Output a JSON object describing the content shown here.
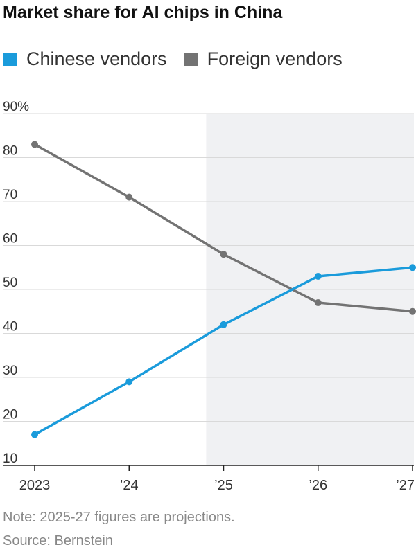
{
  "title": "Market share for AI chips in China",
  "notes": {
    "projection": "Note: 2025-27 figures are projections.",
    "source": "Source: Bernstein"
  },
  "chart_data": {
    "type": "line",
    "categories": [
      "2023",
      "’24",
      "’25",
      "’26",
      "’27"
    ],
    "series": [
      {
        "name": "Chinese vendors",
        "color": "#1a9bdb",
        "values": [
          17,
          29,
          42,
          53,
          55
        ]
      },
      {
        "name": "Foreign vendors",
        "color": "#737373",
        "values": [
          83,
          71,
          58,
          47,
          45
        ]
      }
    ],
    "yticks": [
      {
        "value": 90,
        "label": "90%"
      },
      {
        "value": 80,
        "label": "80"
      },
      {
        "value": 70,
        "label": "70"
      },
      {
        "value": 60,
        "label": "60"
      },
      {
        "value": 50,
        "label": "50"
      },
      {
        "value": 40,
        "label": "40"
      },
      {
        "value": 30,
        "label": "30"
      },
      {
        "value": 20,
        "label": "20"
      },
      {
        "value": 10,
        "label": "10"
      }
    ],
    "ylim": [
      10,
      90
    ],
    "projection_from_index": 2,
    "projection_shade_color": "#f0f1f3",
    "grid": true,
    "legend_position": "top-left"
  }
}
